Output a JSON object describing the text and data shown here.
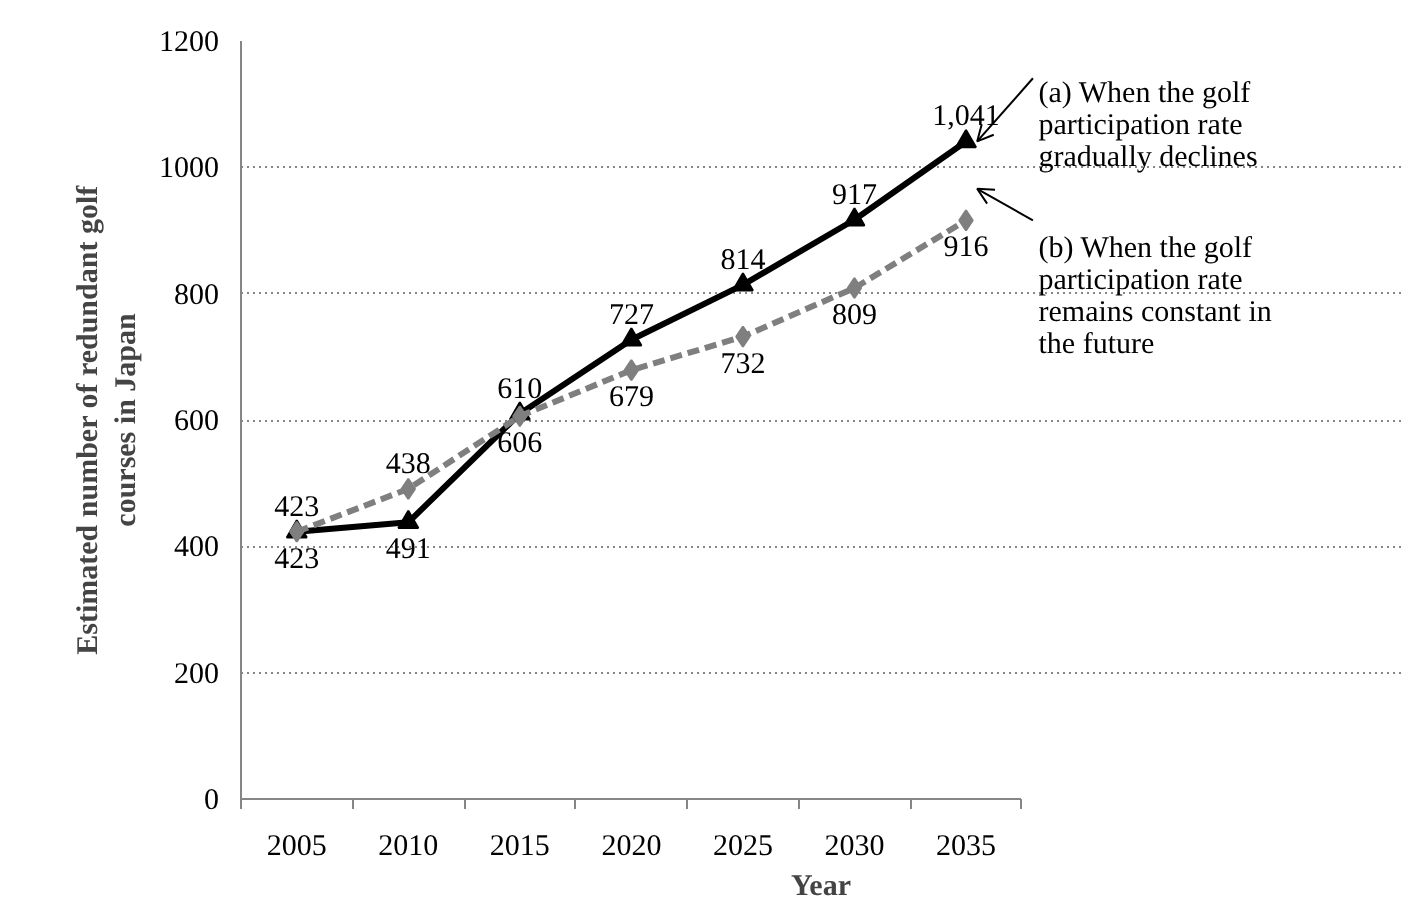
{
  "chart_data": {
    "type": "line",
    "xlabel": "Year",
    "ylabel": "Estimated number of redundant golf courses in Japan",
    "categories": [
      "2005",
      "2010",
      "2015",
      "2020",
      "2025",
      "2030",
      "2035"
    ],
    "ylim": [
      0,
      1200
    ],
    "yticks": [
      0,
      200,
      400,
      600,
      800,
      1000,
      1200
    ],
    "grid": "y",
    "series": [
      {
        "name": "(a) When the golf participation rate gradually declines",
        "color": "#000000",
        "marker": "triangle",
        "line_style": "solid",
        "values": [
          423,
          438,
          610,
          727,
          814,
          917,
          1041
        ],
        "value_labels": [
          "423",
          "438",
          "610",
          "727",
          "814",
          "917",
          "1,041"
        ]
      },
      {
        "name": "(b) When the golf participation rate remains constant in the future",
        "color": "#7f7f7f",
        "marker": "diamond",
        "line_style": "dashed",
        "values": [
          423,
          491,
          606,
          679,
          732,
          809,
          916
        ],
        "value_labels": [
          "423",
          "491",
          "606",
          "679",
          "732",
          "809",
          "916"
        ]
      }
    ]
  }
}
